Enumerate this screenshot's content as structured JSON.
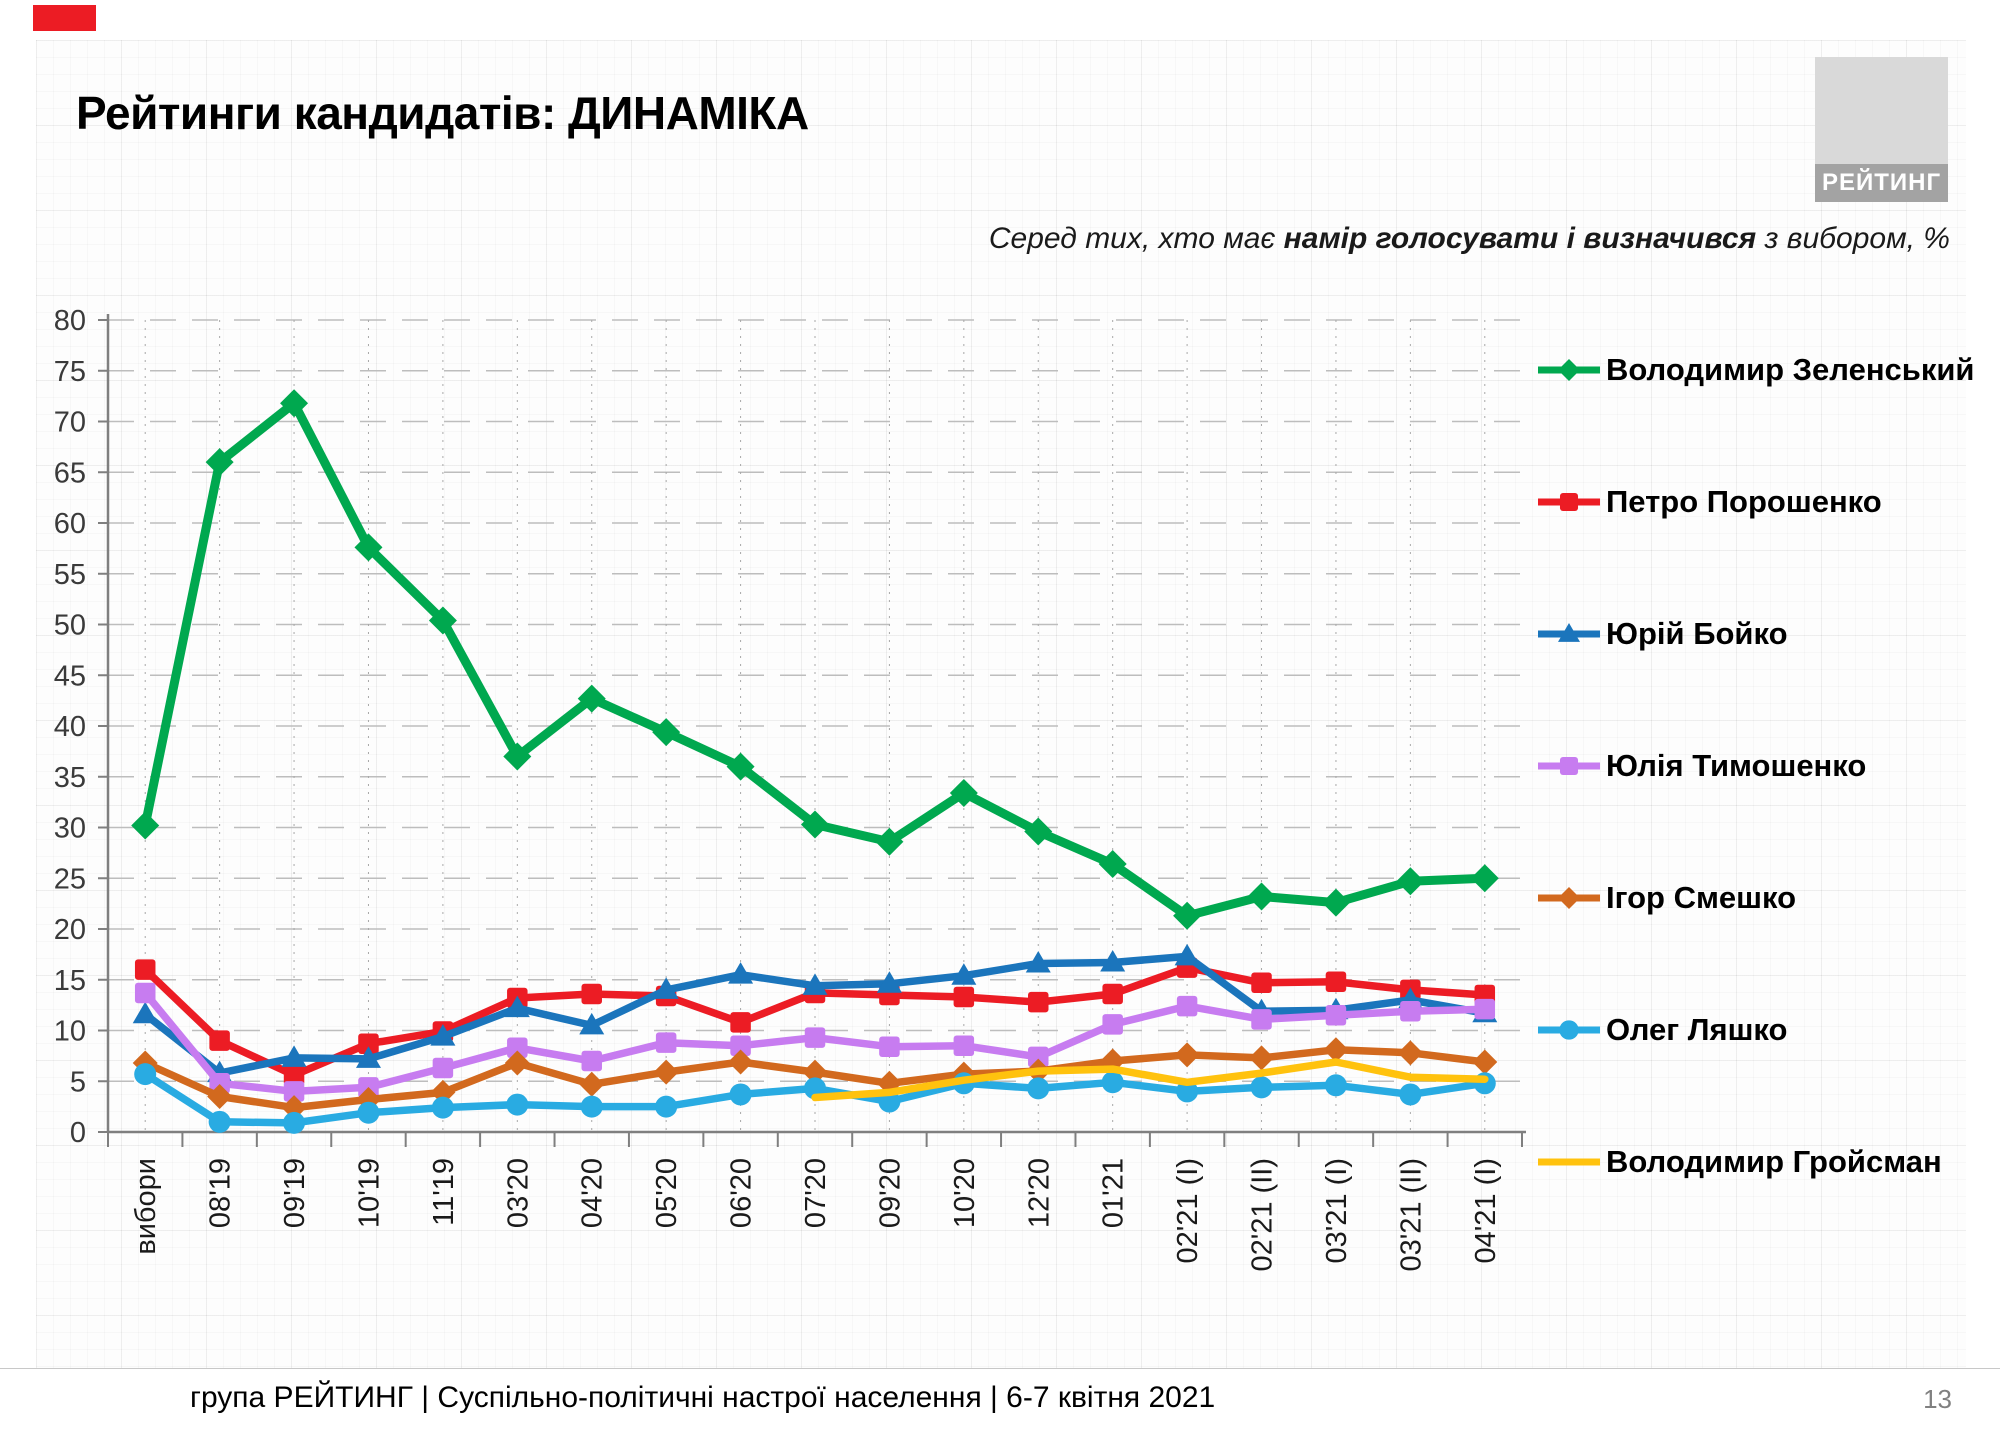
{
  "slide": {
    "title": "Рейтинги кандидатів: ДИНАМІКА",
    "subtitle_prefix": "Серед тих, хто має ",
    "subtitle_bold": "намір голосувати і визначився",
    "subtitle_suffix": " з вибором, %",
    "logo_text": "РЕЙТИНГ",
    "footer": "група РЕЙТИНГ | Суспільно-політичні настрої населення | 6-7 квітня 2021",
    "page_number": "13",
    "accent_red": "#EC1C24"
  },
  "chart_data": {
    "type": "line",
    "title": "Рейтинги кандидатів: ДИНАМІКА",
    "ylabel": "",
    "xlabel": "",
    "ylim": [
      0,
      80
    ],
    "ytick": 5,
    "grid": "horizontal-dashed, vertical-dotted",
    "legend_position": "right",
    "categories": [
      "вибори",
      "08'19",
      "09'19",
      "10'19",
      "11'19",
      "03'20",
      "04'20",
      "05'20",
      "06'20",
      "07'20",
      "09'20",
      "10'20",
      "12'20",
      "01'21",
      "02'21 (I)",
      "02'21 (II)",
      "03'21 (I)",
      "03'21 (II)",
      "04'21 (I)"
    ],
    "series": [
      {
        "name": "Володимир Зеленський",
        "color": "#00A84F",
        "marker": "diamond",
        "values": [
          30.2,
          66.0,
          71.8,
          57.6,
          50.4,
          37.0,
          42.7,
          39.4,
          36.0,
          30.3,
          28.6,
          33.4,
          29.6,
          26.4,
          21.3,
          23.2,
          22.6,
          24.7,
          25.0
        ]
      },
      {
        "name": "Петро Порошенко",
        "color": "#EC1C24",
        "marker": "square",
        "values": [
          16.0,
          9.0,
          5.6,
          8.7,
          9.9,
          13.2,
          13.6,
          13.4,
          10.8,
          13.7,
          13.5,
          13.3,
          12.8,
          13.6,
          16.2,
          14.7,
          14.8,
          14.0,
          13.5
        ]
      },
      {
        "name": "Юрій Бойко",
        "color": "#1B75BC",
        "marker": "triangle",
        "values": [
          11.6,
          5.8,
          7.3,
          7.2,
          9.4,
          12.2,
          10.5,
          14.0,
          15.5,
          14.4,
          14.6,
          15.4,
          16.6,
          16.7,
          17.3,
          11.9,
          12.0,
          13.0,
          11.7
        ]
      },
      {
        "name": "Юлія Тимошенко",
        "color": "#C77CF0",
        "marker": "square",
        "values": [
          13.7,
          4.8,
          4.0,
          4.4,
          6.3,
          8.3,
          7.0,
          8.8,
          8.5,
          9.3,
          8.4,
          8.5,
          7.4,
          10.6,
          12.4,
          11.1,
          11.5,
          11.9,
          12.1
        ]
      },
      {
        "name": "Ігор Смешко",
        "color": "#D2691E",
        "marker": "diamond",
        "values": [
          6.8,
          3.5,
          2.4,
          3.2,
          3.9,
          6.8,
          4.7,
          5.9,
          6.9,
          5.9,
          4.8,
          5.7,
          6.0,
          7.0,
          7.6,
          7.3,
          8.1,
          7.8,
          6.9
        ]
      },
      {
        "name": "Олег Ляшко",
        "color": "#29ABE2",
        "marker": "circle",
        "values": [
          5.7,
          1.0,
          0.9,
          1.9,
          2.4,
          2.7,
          2.5,
          2.5,
          3.7,
          4.3,
          3.0,
          4.8,
          4.3,
          4.9,
          4.0,
          4.4,
          4.6,
          3.7,
          4.8
        ]
      },
      {
        "name": "Володимир Гройсман",
        "color": "#FFC20E",
        "marker": "none",
        "values": [
          null,
          null,
          null,
          null,
          null,
          null,
          null,
          null,
          null,
          3.4,
          3.9,
          5.1,
          6.0,
          6.2,
          4.9,
          5.8,
          6.9,
          5.4,
          5.2
        ]
      }
    ]
  }
}
